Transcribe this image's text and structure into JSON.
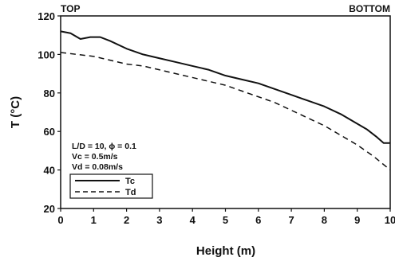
{
  "chart_data": {
    "type": "line",
    "title": "",
    "xlabel": "Height (m)",
    "ylabel": "T (°C)",
    "xlim": [
      0,
      10
    ],
    "ylim": [
      20,
      120
    ],
    "x_ticks": [
      "0",
      "1",
      "2",
      "3",
      "4",
      "5",
      "6",
      "7",
      "8",
      "9",
      "10"
    ],
    "y_ticks": [
      "20",
      "40",
      "60",
      "80",
      "100",
      "120"
    ],
    "grid": false,
    "legend_position": "middle-left",
    "corner_labels": {
      "left": "TOP",
      "right": "BOTTOM"
    },
    "parameters": [
      "L/D = 10, ϕ = 0.1",
      "Vc = 0.5m/s",
      "Vd = 0.08m/s"
    ],
    "series": [
      {
        "name": "Tc",
        "style": "solid",
        "x": [
          0,
          0.3,
          0.6,
          0.9,
          1.2,
          1.5,
          2,
          2.5,
          3,
          3.5,
          4,
          4.5,
          5,
          5.5,
          6,
          6.5,
          7,
          7.5,
          8,
          8.5,
          9,
          9.3,
          9.6,
          9.8,
          10
        ],
        "y": [
          112,
          111,
          108,
          109,
          109,
          107,
          103,
          100,
          98,
          96,
          94,
          92,
          89,
          87,
          85,
          82,
          79,
          76,
          73,
          69,
          64,
          61,
          57,
          54,
          54
        ]
      },
      {
        "name": "Td",
        "style": "dashed",
        "x": [
          0,
          0.5,
          1,
          1.5,
          2,
          2.5,
          3,
          3.5,
          4,
          4.5,
          5,
          5.5,
          6,
          6.5,
          7,
          7.5,
          8,
          8.5,
          9,
          9.5,
          10
        ],
        "y": [
          101,
          100,
          99,
          97,
          95,
          94,
          92,
          90,
          88,
          86,
          84,
          81,
          78,
          75,
          71,
          67,
          63,
          58,
          53,
          47,
          40
        ]
      }
    ]
  }
}
